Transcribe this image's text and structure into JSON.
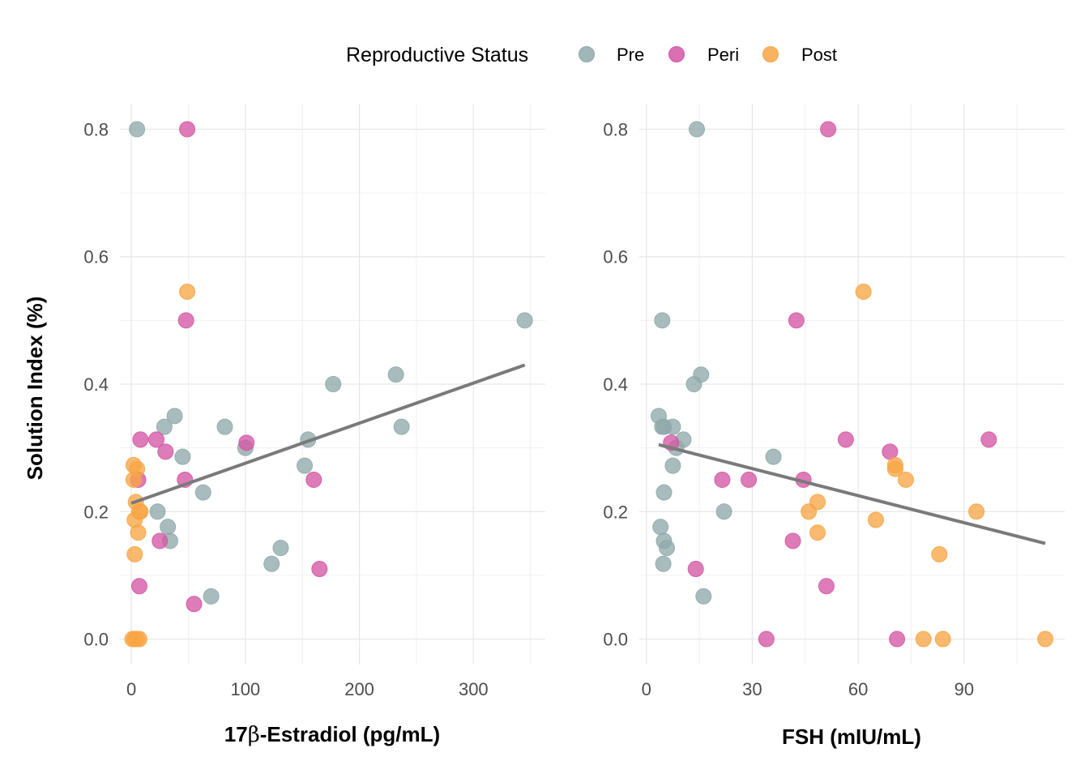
{
  "legend": {
    "title": "Reproductive Status",
    "position": "top",
    "items": [
      {
        "label": "Pre",
        "color": "#8fa9ab"
      },
      {
        "label": "Peri",
        "color": "#d457a4"
      },
      {
        "label": "Post",
        "color": "#f7a545"
      }
    ]
  },
  "y_axis_title": "Solution Index (%)",
  "chart_data": [
    {
      "type": "scatter",
      "xlabel_parts": [
        "17",
        "β",
        "-Estradiol (pg/mL)"
      ],
      "xlim": [
        -10,
        363
      ],
      "ylim": [
        -0.04,
        0.84
      ],
      "xticks": [
        0,
        100,
        200,
        300
      ],
      "xtick_labels": [
        "0",
        "100",
        "200",
        "300"
      ],
      "yticks": [
        0.0,
        0.2,
        0.4,
        0.6,
        0.8
      ],
      "ytick_labels": [
        "0.0",
        "0.2",
        "0.4",
        "0.6",
        "0.8"
      ],
      "grid": true,
      "trend_line": {
        "x": [
          0,
          345
        ],
        "y": [
          0.213,
          0.43
        ],
        "color": "#7a7a7a"
      },
      "series": [
        {
          "name": "Pre",
          "color": "#8fa9ab",
          "points": [
            [
              5,
              0.8
            ],
            [
              345,
              0.5
            ],
            [
              232,
              0.415
            ],
            [
              177,
              0.4
            ],
            [
              237,
              0.333
            ],
            [
              38,
              0.35
            ],
            [
              29,
              0.333
            ],
            [
              82,
              0.333
            ],
            [
              155,
              0.313
            ],
            [
              100,
              0.3
            ],
            [
              45,
              0.286
            ],
            [
              152,
              0.272
            ],
            [
              63,
              0.23
            ],
            [
              23,
              0.2
            ],
            [
              32,
              0.176
            ],
            [
              34,
              0.154
            ],
            [
              131,
              0.143
            ],
            [
              123,
              0.118
            ],
            [
              70,
              0.067
            ]
          ]
        },
        {
          "name": "Peri",
          "color": "#d457a4",
          "points": [
            [
              49,
              0.8
            ],
            [
              48,
              0.5
            ],
            [
              8,
              0.313
            ],
            [
              22,
              0.313
            ],
            [
              101,
              0.308
            ],
            [
              30,
              0.294
            ],
            [
              6,
              0.25
            ],
            [
              47,
              0.25
            ],
            [
              160,
              0.25
            ],
            [
              25,
              0.154
            ],
            [
              165,
              0.11
            ],
            [
              7,
              0.083
            ],
            [
              55,
              0.055
            ]
          ]
        },
        {
          "name": "Post",
          "color": "#f7a545",
          "points": [
            [
              49,
              0.545
            ],
            [
              2,
              0.273
            ],
            [
              5,
              0.267
            ],
            [
              2,
              0.25
            ],
            [
              4,
              0.215
            ],
            [
              8,
              0.2
            ],
            [
              7,
              0.2
            ],
            [
              3,
              0.187
            ],
            [
              6,
              0.167
            ],
            [
              3,
              0.133
            ],
            [
              1,
              0.0
            ],
            [
              3,
              0.0
            ],
            [
              5,
              0.0
            ],
            [
              7,
              0.0
            ]
          ]
        }
      ]
    },
    {
      "type": "scatter",
      "xlabel_parts": [
        "FSH (mIU/mL)"
      ],
      "xlim": [
        -2,
        118.5
      ],
      "ylim": [
        -0.04,
        0.84
      ],
      "xticks": [
        0,
        30,
        60,
        90
      ],
      "xtick_labels": [
        "0",
        "30",
        "60",
        "90"
      ],
      "yticks": [
        0.0,
        0.2,
        0.4,
        0.6,
        0.8
      ],
      "ytick_labels": [
        "0.0",
        "0.2",
        "0.4",
        "0.6",
        "0.8"
      ],
      "grid": true,
      "trend_line": {
        "x": [
          3.5,
          113
        ],
        "y": [
          0.305,
          0.15
        ],
        "color": "#7a7a7a"
      },
      "series": [
        {
          "name": "Pre",
          "color": "#8fa9ab",
          "points": [
            [
              14.3,
              0.8
            ],
            [
              4.5,
              0.5
            ],
            [
              15.5,
              0.415
            ],
            [
              13.5,
              0.4
            ],
            [
              3.5,
              0.35
            ],
            [
              4.5,
              0.333
            ],
            [
              5,
              0.333
            ],
            [
              7.5,
              0.333
            ],
            [
              10.5,
              0.313
            ],
            [
              8.5,
              0.3
            ],
            [
              36,
              0.286
            ],
            [
              7.5,
              0.272
            ],
            [
              5,
              0.23
            ],
            [
              22,
              0.2
            ],
            [
              4,
              0.176
            ],
            [
              5,
              0.154
            ],
            [
              5.8,
              0.143
            ],
            [
              4.8,
              0.118
            ],
            [
              16.2,
              0.067
            ]
          ]
        },
        {
          "name": "Peri",
          "color": "#d457a4",
          "points": [
            [
              51.5,
              0.8
            ],
            [
              42.5,
              0.5
            ],
            [
              56.5,
              0.313
            ],
            [
              97,
              0.313
            ],
            [
              7,
              0.308
            ],
            [
              69,
              0.294
            ],
            [
              21.5,
              0.25
            ],
            [
              29,
              0.25
            ],
            [
              44.5,
              0.25
            ],
            [
              41.5,
              0.154
            ],
            [
              14,
              0.11
            ],
            [
              51,
              0.083
            ],
            [
              34,
              0.0
            ],
            [
              71,
              0.0
            ]
          ]
        },
        {
          "name": "Post",
          "color": "#f7a545",
          "points": [
            [
              61.5,
              0.545
            ],
            [
              70.5,
              0.273
            ],
            [
              70.5,
              0.267
            ],
            [
              73.5,
              0.25
            ],
            [
              48.5,
              0.215
            ],
            [
              46,
              0.2
            ],
            [
              93.5,
              0.2
            ],
            [
              65,
              0.187
            ],
            [
              48.5,
              0.167
            ],
            [
              83,
              0.133
            ],
            [
              78.5,
              0.0
            ],
            [
              84,
              0.0
            ],
            [
              113,
              0.0
            ]
          ]
        }
      ]
    }
  ]
}
